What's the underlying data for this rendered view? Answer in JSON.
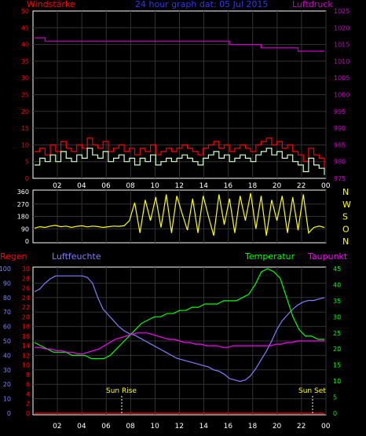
{
  "chart_data": [
    {
      "type": "line",
      "title": "24 hour graph dat:  05 Jul 2015",
      "left_axis_title": "Windstärke",
      "right_axis_title": "Luftdruck",
      "x_ticks": [
        "02",
        "04",
        "06",
        "08",
        "10",
        "12",
        "14",
        "16",
        "18",
        "20",
        "22",
        "00"
      ],
      "left_ylim": [
        0,
        50
      ],
      "left_ticks": [
        "0",
        "5",
        "10",
        "15",
        "20",
        "25",
        "30",
        "35",
        "40",
        "45",
        "50"
      ],
      "right_ylim": [
        975,
        1025
      ],
      "right_ticks": [
        "975",
        "980",
        "985",
        "990",
        "995",
        "1000",
        "1005",
        "1010",
        "1015",
        "1020",
        "1025"
      ],
      "series": [
        {
          "color": "#ff0000",
          "values": [
            8,
            9,
            7,
            10,
            8,
            11,
            9,
            8,
            10,
            9,
            12,
            10,
            9,
            11,
            8,
            9,
            10,
            8,
            9,
            7,
            9,
            8,
            10,
            7,
            8,
            9,
            8,
            9,
            10,
            9,
            8,
            7,
            9,
            10,
            11,
            9,
            10,
            8,
            9,
            10,
            9,
            8,
            10,
            11,
            12,
            10,
            11,
            9,
            10,
            8,
            7,
            5,
            9,
            7,
            6,
            3
          ]
        },
        {
          "color": "#ccffcc",
          "values": [
            4,
            6,
            5,
            7,
            5,
            8,
            6,
            5,
            7,
            6,
            9,
            7,
            6,
            8,
            5,
            6,
            7,
            5,
            6,
            4,
            6,
            5,
            7,
            4,
            5,
            6,
            5,
            6,
            7,
            6,
            5,
            4,
            6,
            7,
            8,
            6,
            7,
            5,
            6,
            7,
            6,
            5,
            7,
            8,
            9,
            7,
            8,
            6,
            7,
            5,
            4,
            2,
            6,
            4,
            3,
            1
          ]
        },
        {
          "color": "#cc00cc",
          "values": [
            1017,
            1017,
            1016,
            1016,
            1016,
            1016,
            1016,
            1016,
            1016,
            1016,
            1016,
            1016,
            1016,
            1016,
            1016,
            1016,
            1016,
            1016,
            1016,
            1016,
            1016,
            1016,
            1016,
            1016,
            1016,
            1016,
            1016,
            1016,
            1016,
            1016,
            1016,
            1016,
            1016,
            1016,
            1016,
            1016,
            1016,
            1015,
            1015,
            1015,
            1015,
            1015,
            1015,
            1014,
            1014,
            1014,
            1014,
            1014,
            1014,
            1014,
            1013,
            1013,
            1013,
            1013,
            1013,
            1013
          ]
        }
      ]
    },
    {
      "type": "line",
      "right_labels": [
        "N",
        "W",
        "S",
        "O",
        "N"
      ],
      "x_ticks": [
        "02",
        "04",
        "06",
        "08",
        "10",
        "12",
        "14",
        "16",
        "18",
        "20",
        "22",
        "00"
      ],
      "ylim": [
        0,
        360
      ],
      "ticks": [
        "0",
        "90",
        "180",
        "270",
        "360"
      ],
      "series": [
        {
          "color": "#ffff00",
          "values": [
            95,
            105,
            100,
            110,
            115,
            105,
            110,
            100,
            108,
            112,
            104,
            110,
            106,
            100,
            105,
            110,
            108,
            112,
            150,
            280,
            60,
            300,
            150,
            320,
            100,
            340,
            60,
            330,
            200,
            80,
            310,
            60,
            330,
            180,
            40,
            340,
            120,
            310,
            60,
            330,
            150,
            350,
            90,
            330,
            40,
            300,
            150,
            330,
            60,
            320,
            80,
            340,
            60,
            100,
            110,
            100
          ]
        }
      ]
    },
    {
      "type": "line",
      "labels": {
        "rain": "Regen",
        "humidity": "Luftfeuchte",
        "temperature": "Temperatur",
        "dewpoint": "Taupunkt"
      },
      "x_ticks": [
        "02",
        "04",
        "06",
        "08",
        "10",
        "12",
        "14",
        "16",
        "18",
        "20",
        "22",
        "00"
      ],
      "humidity_ylim": [
        0,
        100
      ],
      "humidity_ticks": [
        "0",
        "10",
        "20",
        "30",
        "40",
        "50",
        "60",
        "70",
        "80",
        "90",
        "100"
      ],
      "rain_ylim": [
        0,
        30
      ],
      "rain_ticks": [
        "0",
        "2",
        "4",
        "6",
        "8",
        "10",
        "12",
        "14",
        "16",
        "18",
        "20",
        "22",
        "24",
        "26",
        "28",
        "30"
      ],
      "temp_ylim": [
        0,
        45
      ],
      "temp_ticks": [
        "0",
        "5",
        "10",
        "15",
        "20",
        "25",
        "30",
        "35",
        "40",
        "45"
      ],
      "annotations": {
        "sun_rise": "Sun Rise",
        "sun_set": "Sun Set"
      },
      "series": [
        {
          "name": "Luftfeuchte",
          "color": "#7f7fff",
          "values": [
            84,
            86,
            90,
            93,
            95,
            95,
            95,
            95,
            95,
            95,
            94,
            90,
            80,
            72,
            68,
            64,
            60,
            57,
            55,
            54,
            52,
            50,
            48,
            46,
            44,
            42,
            40,
            38,
            37,
            36,
            35,
            34,
            33,
            32,
            30,
            29,
            27,
            24,
            23,
            22,
            23,
            26,
            31,
            37,
            43,
            50,
            58,
            64,
            68,
            72,
            75,
            77,
            78,
            78,
            79,
            80
          ]
        },
        {
          "name": "Temperatur",
          "color": "#00ff00",
          "values": [
            22,
            21,
            20,
            19,
            19,
            19,
            18,
            18,
            18,
            17,
            17,
            17,
            18,
            20,
            22,
            24,
            26,
            28,
            29,
            30,
            30,
            31,
            31,
            32,
            32,
            33,
            33,
            34,
            34,
            34,
            35,
            35,
            35,
            36,
            37,
            40,
            44,
            45,
            44,
            42,
            36,
            30,
            26,
            24,
            24,
            23,
            23
          ]
        },
        {
          "name": "Taupunkt",
          "color": "#ff00ff",
          "values": [
            20.5,
            20.5,
            20,
            20,
            19.5,
            19.5,
            19,
            19,
            18.5,
            18.5,
            19,
            19.5,
            20,
            21,
            22,
            23,
            23.5,
            24,
            24.5,
            25,
            25,
            25,
            24.5,
            24,
            23.5,
            23,
            23,
            22.5,
            22,
            22,
            21.5,
            21.5,
            21,
            21,
            21,
            20.5,
            20.5,
            21,
            21,
            21,
            21,
            21,
            21,
            21,
            21,
            21.5,
            21.5,
            22,
            22,
            22.5,
            22.5,
            22.5,
            22.5,
            22.5,
            22.5
          ]
        },
        {
          "name": "Regen",
          "color": "#ff0000",
          "values": [
            0,
            0
          ]
        }
      ]
    }
  ]
}
